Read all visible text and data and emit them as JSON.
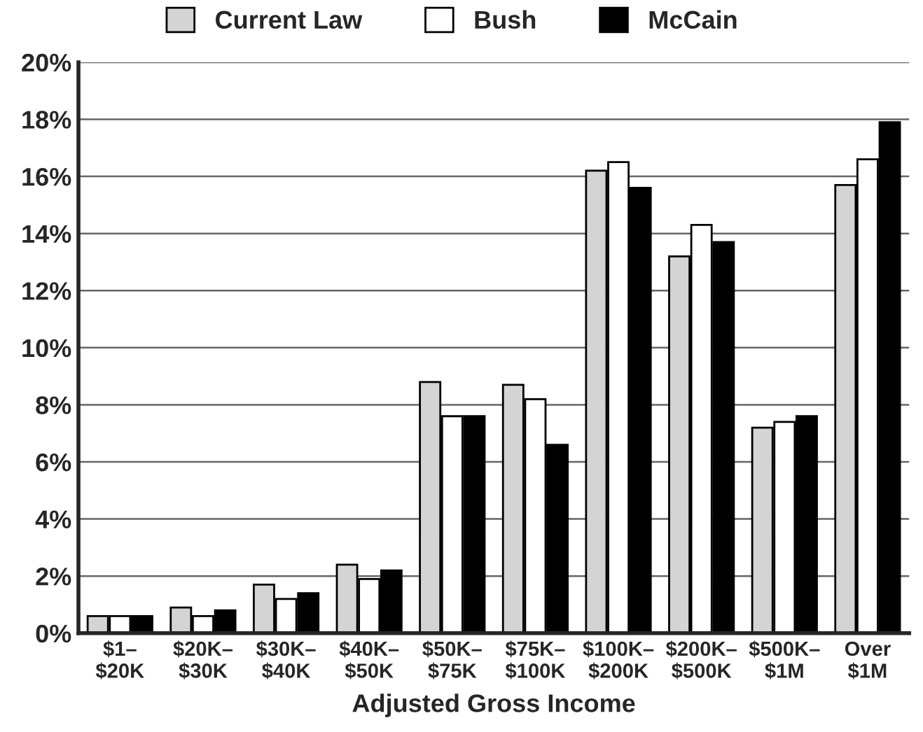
{
  "chart_data": {
    "type": "bar",
    "xlabel": "Adjusted Gross Income",
    "categories": [
      "$1–\n$20K",
      "$20K–\n$30K",
      "$30K–\n$40K",
      "$40K–\n$50K",
      "$50K–\n$75K",
      "$75K–\n$100K",
      "$100K–\n$200K",
      "$200K–\n$500K",
      "$500K–\n$1M",
      "Over\n$1M"
    ],
    "series": [
      {
        "name": "Current Law",
        "color": "#d4d4d4",
        "values": [
          0.6,
          0.9,
          1.7,
          2.4,
          8.8,
          8.7,
          16.2,
          13.2,
          7.2,
          15.7
        ]
      },
      {
        "name": "Bush",
        "color": "#ffffff",
        "values": [
          0.6,
          0.6,
          1.2,
          1.9,
          7.6,
          8.2,
          16.5,
          14.3,
          7.4,
          16.6
        ]
      },
      {
        "name": "McCain",
        "color": "#000000",
        "values": [
          0.6,
          0.8,
          1.4,
          2.2,
          7.6,
          6.6,
          15.6,
          13.7,
          7.6,
          17.9
        ]
      }
    ],
    "ylim": [
      0,
      20
    ],
    "yticks": [
      {
        "value": 0,
        "label": "0%"
      },
      {
        "value": 2,
        "label": "2%"
      },
      {
        "value": 4,
        "label": "4%"
      },
      {
        "value": 6,
        "label": "6%"
      },
      {
        "value": 8,
        "label": "8%"
      },
      {
        "value": 10,
        "label": "10%"
      },
      {
        "value": 12,
        "label": "12%"
      },
      {
        "value": 14,
        "label": "14%"
      },
      {
        "value": 16,
        "label": "16%"
      },
      {
        "value": 18,
        "label": "18%"
      },
      {
        "value": 20,
        "label": "20%"
      }
    ],
    "grid": "y",
    "legend": "top"
  }
}
